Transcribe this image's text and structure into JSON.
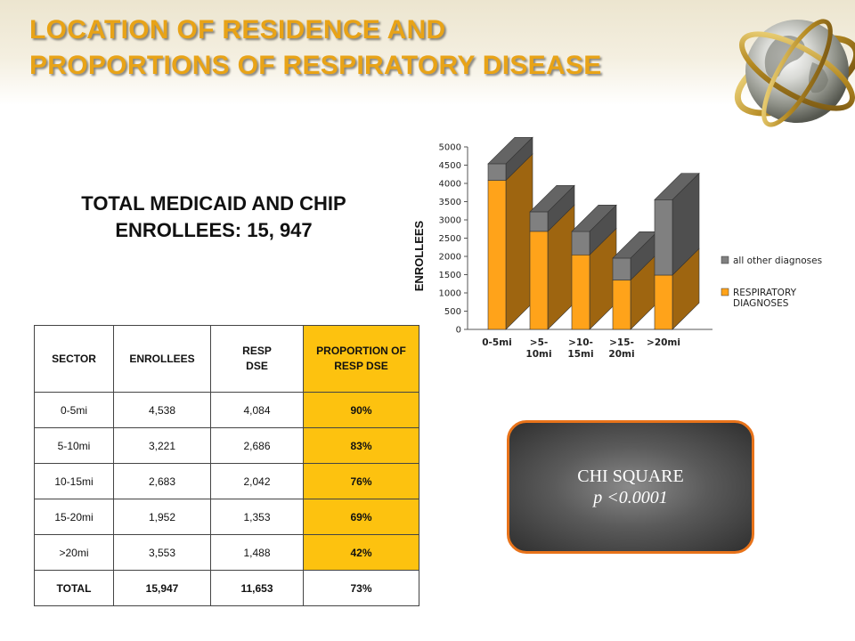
{
  "title": {
    "line1": "LOCATION OF RESIDENCE AND",
    "line2": "PROPORTIONS OF RESPIRATORY DISEASE"
  },
  "total": {
    "line1": "TOTAL MEDICAID AND CHIP",
    "line2": "ENROLLEES: 15, 947"
  },
  "table": {
    "headers": {
      "sector": "SECTOR",
      "enrollees": "ENROLLEES",
      "resp_line1": "RESP",
      "resp_line2": "DSE",
      "proportion": "PROPORTION OF RESP DSE"
    },
    "rows": [
      {
        "sector": "0-5mi",
        "enrollees": "4,538",
        "resp": "4,084",
        "proportion": "90%"
      },
      {
        "sector": "5-10mi",
        "enrollees": "3,221",
        "resp": "2,686",
        "proportion": "83%"
      },
      {
        "sector": "10-15mi",
        "enrollees": "2,683",
        "resp": "2,042",
        "proportion": "76%"
      },
      {
        "sector": "15-20mi",
        "enrollees": "1,952",
        "resp": "1,353",
        "proportion": "69%"
      },
      {
        "sector": ">20mi",
        "enrollees": "3,553",
        "resp": "1,488",
        "proportion": "42%"
      }
    ],
    "total_row": {
      "sector": "TOTAL",
      "enrollees": "15,947",
      "resp": "11,653",
      "proportion": "73%"
    }
  },
  "chi": {
    "line1": "CHI SQUARE",
    "line2": "p <0.0001"
  },
  "chart_data": {
    "type": "bar",
    "stacked": true,
    "three_d": true,
    "categories": [
      [
        "0-5mi"
      ],
      [
        ">5-",
        "10mi"
      ],
      [
        ">10-",
        "15mi"
      ],
      [
        ">15-",
        "20mi"
      ],
      [
        ">20mi"
      ]
    ],
    "series": [
      {
        "name": "RESPIRATORY DIAGNOSES",
        "legend_lines": [
          "RESPIRATORY",
          "DIAGNOSES"
        ],
        "values": [
          4084,
          2686,
          2042,
          1353,
          1488
        ],
        "color": "#ffa31a"
      },
      {
        "name": "all other diagnoses",
        "legend_lines": [
          "all other diagnoses"
        ],
        "values": [
          454,
          535,
          641,
          599,
          2065
        ],
        "color": "#808080"
      }
    ],
    "ylabel": "ENROLLEES",
    "ylim": [
      0,
      5000
    ],
    "yticks": [
      0,
      500,
      1000,
      1500,
      2000,
      2500,
      3000,
      3500,
      4000,
      4500,
      5000
    ],
    "legend_position": "right"
  }
}
